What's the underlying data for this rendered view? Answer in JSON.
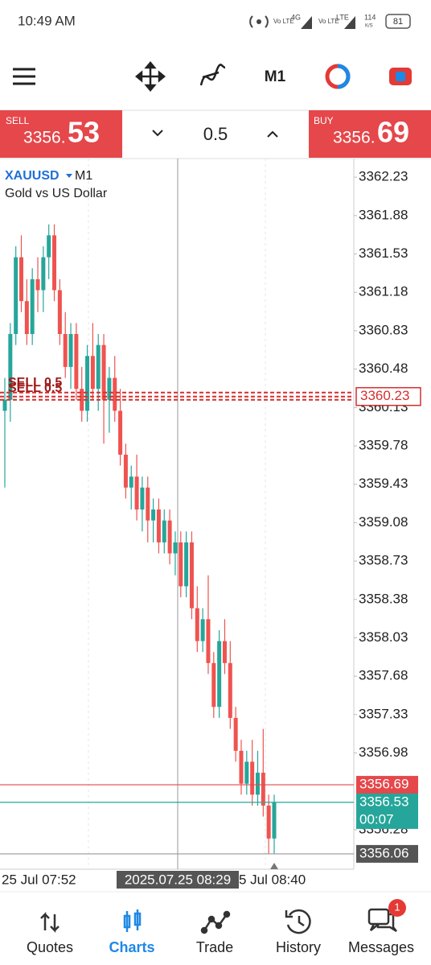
{
  "status_bar": {
    "time": "10:49 AM",
    "volte_1": "Vo LTE",
    "network": "4G",
    "volte_2": "Vo LTE",
    "lte": "LTE",
    "speed_value": "114",
    "speed_unit": "K/S",
    "battery": "81"
  },
  "toolbar": {
    "timeframe": "M1"
  },
  "trade_panel": {
    "sell_label": "SELL",
    "sell_price_main": "3356.",
    "sell_price_big": "53",
    "volume": "0.5",
    "buy_label": "BUY",
    "buy_price_main": "3356.",
    "buy_price_big": "69"
  },
  "chart_data": {
    "type": "candlestick",
    "symbol": "XAUUSD",
    "timeframe": "M1",
    "description": "Gold vs US Dollar",
    "up_color": "#26a69a",
    "down_color": "#ef5350",
    "open": [
      3360.1,
      3360.2,
      3360.8,
      3361.5,
      3361.1,
      3360.8,
      3361.3,
      3361.2,
      3361.5,
      3361.7,
      3361.2,
      3360.8,
      3360.5,
      3360.8,
      3360.3,
      3360.1,
      3360.6,
      3360.3,
      3360.7,
      3360.2,
      3360.4,
      3360.1,
      3359.7,
      3359.4,
      3359.5,
      3359.2,
      3359.4,
      3359.1,
      3359.2,
      3358.9,
      3359.1,
      3358.8,
      3358.9,
      3358.5,
      3358.9,
      3358.3,
      3358.0,
      3358.2,
      3357.8,
      3357.4,
      3358.0,
      3357.8,
      3357.3,
      3357.0,
      3356.7,
      3356.9,
      3356.6,
      3356.8,
      3356.5,
      3356.2
    ],
    "high": [
      3360.4,
      3360.9,
      3361.6,
      3361.7,
      3361.3,
      3361.4,
      3361.5,
      3361.6,
      3361.8,
      3361.8,
      3361.3,
      3361.0,
      3360.9,
      3360.9,
      3360.5,
      3360.7,
      3360.9,
      3360.8,
      3360.8,
      3360.5,
      3360.6,
      3360.3,
      3359.8,
      3359.6,
      3359.7,
      3359.5,
      3359.5,
      3359.3,
      3359.3,
      3359.2,
      3359.2,
      3359.0,
      3359.0,
      3359.0,
      3359.0,
      3358.5,
      3358.3,
      3358.6,
      3357.9,
      3358.1,
      3358.2,
      3358.0,
      3357.4,
      3357.1,
      3357.0,
      3357.1,
      3357.0,
      3357.2,
      3356.6,
      3356.6
    ],
    "low": [
      3359.4,
      3360.0,
      3360.7,
      3361.0,
      3360.7,
      3360.7,
      3361.0,
      3361.0,
      3361.3,
      3361.1,
      3360.7,
      3360.4,
      3360.3,
      3360.2,
      3360.0,
      3360.0,
      3360.2,
      3360.1,
      3359.8,
      3359.9,
      3360.0,
      3359.6,
      3359.3,
      3359.2,
      3359.1,
      3359.0,
      3358.9,
      3358.9,
      3358.8,
      3358.8,
      3358.7,
      3358.6,
      3358.4,
      3358.4,
      3358.2,
      3357.9,
      3357.9,
      3357.7,
      3357.3,
      3357.3,
      3357.7,
      3357.2,
      3356.9,
      3356.6,
      3356.6,
      3356.5,
      3356.5,
      3356.4,
      3356.06,
      3356.06
    ],
    "close": [
      3360.2,
      3360.8,
      3361.5,
      3361.1,
      3360.8,
      3361.3,
      3361.2,
      3361.5,
      3361.7,
      3361.2,
      3360.8,
      3360.5,
      3360.8,
      3360.3,
      3360.1,
      3360.6,
      3360.3,
      3360.7,
      3360.2,
      3360.4,
      3360.1,
      3359.7,
      3359.4,
      3359.5,
      3359.2,
      3359.4,
      3359.1,
      3359.2,
      3358.9,
      3359.1,
      3358.8,
      3358.9,
      3358.5,
      3358.9,
      3358.3,
      3358.0,
      3358.2,
      3357.8,
      3357.4,
      3358.0,
      3357.8,
      3357.3,
      3357.0,
      3356.7,
      3356.9,
      3356.6,
      3356.8,
      3356.5,
      3356.2,
      3356.53
    ],
    "ylim": [
      3355.92,
      3362.4
    ],
    "yticks": [
      3362.23,
      3361.88,
      3361.53,
      3361.18,
      3360.83,
      3360.48,
      3360.13,
      3359.78,
      3359.43,
      3359.08,
      3358.73,
      3358.38,
      3358.03,
      3357.68,
      3357.33,
      3356.98,
      3356.28
    ],
    "order_label": "SELL 0.5",
    "order_price": 3360.23,
    "ask": 3356.69,
    "bid": 3356.53,
    "countdown": "00:07",
    "crosshair_price": 3356.06,
    "x_labels": [
      "25 Jul 07:52",
      "5 Jul 08:40"
    ],
    "crosshair_time": "2025.07.25 08:29"
  },
  "nav": {
    "items": [
      "Quotes",
      "Charts",
      "Trade",
      "History",
      "Messages"
    ],
    "messages_badge": "1"
  }
}
